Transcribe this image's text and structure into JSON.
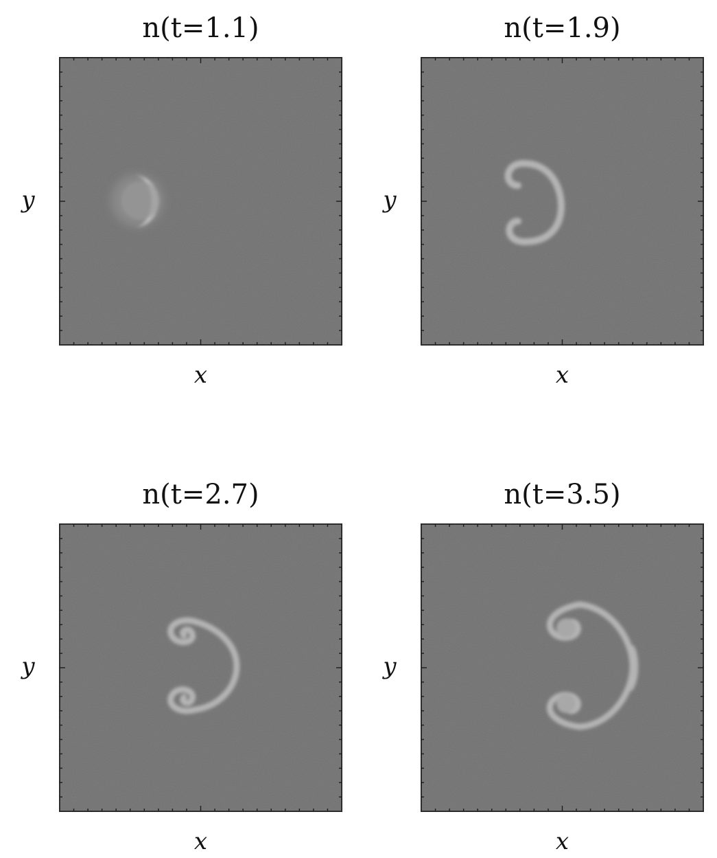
{
  "panels": [
    {
      "title": "n(t=1.1)",
      "x_label": "x",
      "y_label": "y"
    },
    {
      "title": "n(t=1.9)",
      "x_label": "x",
      "y_label": "y"
    },
    {
      "title": "n(t=2.7)",
      "x_label": "x",
      "y_label": "y"
    },
    {
      "title": "n(t=3.5)",
      "x_label": "x",
      "y_label": "y"
    }
  ]
}
